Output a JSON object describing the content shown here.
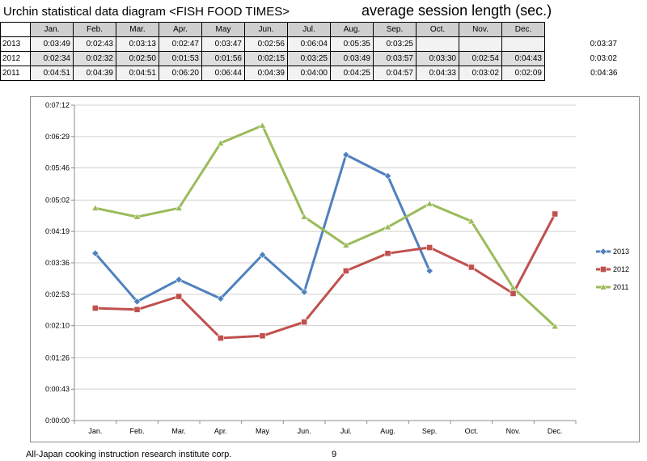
{
  "header": {
    "title": "Urchin statistical data diagram  <FISH FOOD TIMES>",
    "metric": "average session length (sec.)"
  },
  "table": {
    "months": [
      "Jan.",
      "Feb.",
      "Mar.",
      "Apr.",
      "May",
      "Jun.",
      "Jul.",
      "Aug.",
      "Sep.",
      "Oct.",
      "Nov.",
      "Dec."
    ],
    "rows": [
      {
        "year": "2013",
        "cells": [
          "0:03:49",
          "0:02:43",
          "0:03:13",
          "0:02:47",
          "0:03:47",
          "0:02:56",
          "0:06:04",
          "0:05:35",
          "0:03:25",
          "",
          "",
          ""
        ],
        "total": "0:03:37"
      },
      {
        "year": "2012",
        "cells": [
          "0:02:34",
          "0:02:32",
          "0:02:50",
          "0:01:53",
          "0:01:56",
          "0:02:15",
          "0:03:25",
          "0:03:49",
          "0:03:57",
          "0:03:30",
          "0:02:54",
          "0:04:43"
        ],
        "total": "0:03:02"
      },
      {
        "year": "2011",
        "cells": [
          "0:04:51",
          "0:04:39",
          "0:04:51",
          "0:06:20",
          "0:06:44",
          "0:04:39",
          "0:04:00",
          "0:04:25",
          "0:04:57",
          "0:04:33",
          "0:03:02",
          "0:02:09"
        ],
        "total": "0:04:36"
      }
    ]
  },
  "chart_data": {
    "type": "line",
    "categories": [
      "Jan.",
      "Feb.",
      "Mar.",
      "Apr.",
      "May",
      "Jun.",
      "Jul.",
      "Aug.",
      "Sep.",
      "Oct.",
      "Nov.",
      "Dec."
    ],
    "ylim_seconds": [
      0,
      432
    ],
    "ytick_seconds": [
      0,
      43,
      86,
      130,
      173,
      216,
      259,
      302,
      346,
      389,
      432
    ],
    "ytick_labels": [
      "0:00:00",
      "0:00:43",
      "0:01:26",
      "0:02:10",
      "0:02:53",
      "0:03:36",
      "0:04:19",
      "0:05:02",
      "0:05:46",
      "0:06:29",
      "0:07:12"
    ],
    "grid": "horizontal",
    "legend": "right",
    "series": [
      {
        "name": "2013",
        "color": "#4f81bd",
        "marker": "diamond",
        "values": [
          229,
          163,
          193,
          167,
          227,
          176,
          364,
          335,
          205,
          null,
          null,
          null
        ]
      },
      {
        "name": "2012",
        "color": "#c0504d",
        "marker": "square",
        "values": [
          154,
          152,
          170,
          113,
          116,
          135,
          205,
          229,
          237,
          210,
          174,
          283
        ]
      },
      {
        "name": "2011",
        "color": "#9bbb59",
        "marker": "triangle",
        "values": [
          291,
          279,
          291,
          380,
          404,
          279,
          240,
          265,
          297,
          273,
          182,
          129
        ]
      }
    ]
  },
  "footer": {
    "company": "All-Japan cooking instruction research institute corp.",
    "page": "9"
  }
}
